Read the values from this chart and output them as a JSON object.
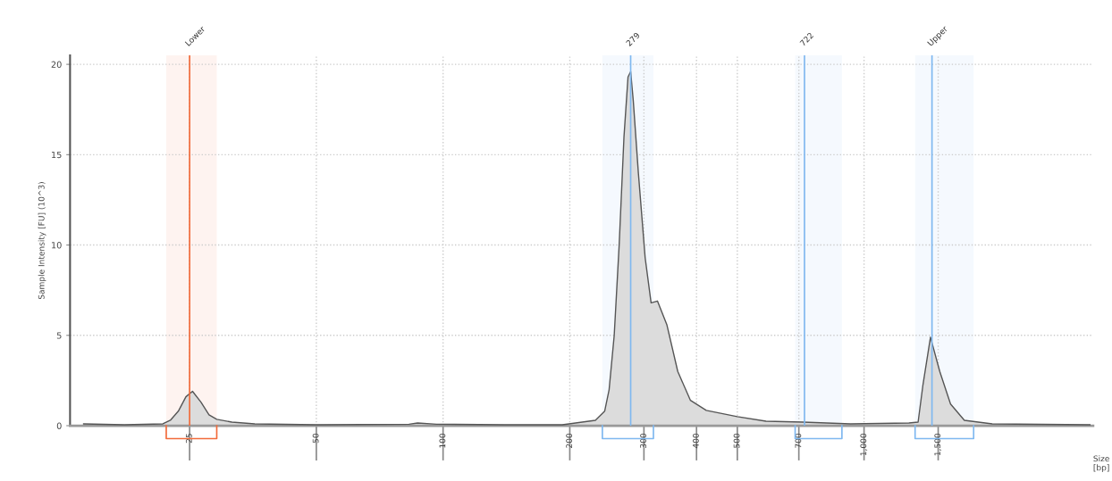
{
  "chart_data": {
    "type": "area",
    "xlabel": "Size\n[bp]",
    "ylabel": "Sample Intensity [FU] (10^3)",
    "x": [
      14,
      17.5,
      21.6,
      22.5,
      23.5,
      24.5,
      25.4,
      26.6,
      27.8,
      29,
      31.5,
      35.7,
      50,
      83,
      87,
      96.5,
      140,
      192,
      230,
      242,
      248,
      255,
      262,
      269,
      275,
      279,
      283,
      291,
      302,
      312,
      323,
      340,
      361,
      387,
      422,
      500,
      585,
      715,
      929,
      1278,
      1344,
      1379,
      1438,
      1513,
      1605,
      1731,
      2016,
      3440
    ],
    "series": [
      {
        "color": "#dcdcdc",
        "values": [
          0.1,
          0.05,
          0.1,
          0.3,
          0.8,
          1.6,
          1.9,
          1.3,
          0.6,
          0.35,
          0.2,
          0.1,
          0.05,
          0.08,
          0.15,
          0.08,
          0.05,
          0.05,
          0.3,
          0.8,
          2,
          5,
          10,
          16,
          19.3,
          19.6,
          18,
          14,
          9.3,
          6.8,
          6.9,
          5.6,
          3.0,
          1.4,
          0.85,
          0.5,
          0.25,
          0.2,
          0.1,
          0.15,
          0.2,
          2.2,
          4.9,
          3.0,
          1.2,
          0.3,
          0.1,
          0.05
        ]
      }
    ],
    "log": "x",
    "xlim": [
      13,
      3500
    ],
    "ylim": [
      0,
      20.5
    ],
    "xticks": [
      25,
      50,
      100,
      200,
      300,
      400,
      500,
      700,
      {
        "value": 1000,
        "label": "1,000"
      },
      {
        "value": 1500,
        "label": "1,500"
      }
    ],
    "yticks": [
      0,
      5,
      10,
      15,
      20
    ],
    "grid": true,
    "ref_lines": [
      {
        "axis": "x",
        "value": 25,
        "label": "Lower",
        "color": "#f26b3a"
      },
      {
        "axis": "x",
        "value": 279,
        "label": "279",
        "color": "#7fb8f0"
      },
      {
        "axis": "x",
        "value": 722,
        "label": "722",
        "color": "#7fb8f0"
      },
      {
        "axis": "x",
        "value": 1450,
        "label": "Upper",
        "color": "#7fb8f0"
      }
    ],
    "bands": [
      {
        "axis": "x",
        "from": 22,
        "to": 29,
        "color": "#f26b3a"
      },
      {
        "axis": "x",
        "from": 239,
        "to": 316,
        "color": "#7fb8f0"
      },
      {
        "axis": "x",
        "from": 686,
        "to": 886,
        "color": "#7fb8f0"
      },
      {
        "axis": "x",
        "from": 1322,
        "to": 1821,
        "color": "#7fb8f0"
      }
    ]
  }
}
